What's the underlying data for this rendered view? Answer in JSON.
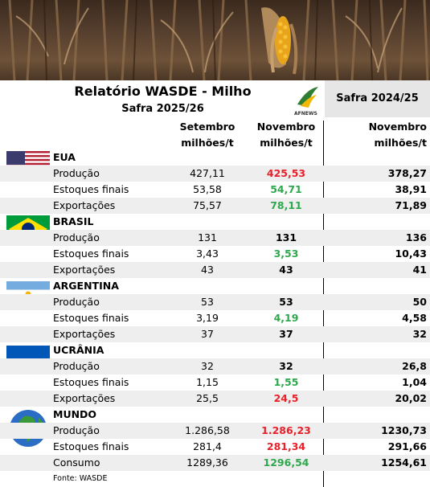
{
  "header": {
    "title": "Relatório WASDE - Milho",
    "subtitle": "Safra 2025/26",
    "safra_prev": "Safra 2024/25",
    "logo_text": "AFNEWS"
  },
  "columns": {
    "col1_line1": "Setembro",
    "col1_line2": "milhões/t",
    "col2_line1": "Novembro",
    "col2_line2": "milhões/t",
    "col3_line1": "Novembro",
    "col3_line2": "milhões/t"
  },
  "colors": {
    "red": "#e8202a",
    "green": "#2ea84c",
    "shade": "#eeeeee"
  },
  "sections": [
    {
      "country": "EUA",
      "flag": "usa-flag-icon",
      "rows": [
        {
          "label": "Produção",
          "set": "427,11",
          "nov": "425,53",
          "nov_color": "red",
          "prev": "378,27"
        },
        {
          "label": "Estoques finais",
          "set": "53,58",
          "nov": "54,71",
          "nov_color": "green",
          "prev": "38,91"
        },
        {
          "label": "Exportações",
          "set": "75,57",
          "nov": "78,11",
          "nov_color": "green",
          "prev": "71,89"
        }
      ]
    },
    {
      "country": "BRASIL",
      "flag": "brazil-flag-icon",
      "rows": [
        {
          "label": "Produção",
          "set": "131",
          "nov": "131",
          "nov_color": "",
          "prev": "136"
        },
        {
          "label": "Estoques finais",
          "set": "3,43",
          "nov": "3,53",
          "nov_color": "green",
          "prev": "10,43"
        },
        {
          "label": "Exportações",
          "set": "43",
          "nov": "43",
          "nov_color": "",
          "prev": "41"
        }
      ]
    },
    {
      "country": "ARGENTINA",
      "flag": "argentina-flag-icon",
      "rows": [
        {
          "label": "Produção",
          "set": "53",
          "nov": "53",
          "nov_color": "",
          "prev": "50"
        },
        {
          "label": "Estoques finais",
          "set": "3,19",
          "nov": "4,19",
          "nov_color": "green",
          "prev": "4,58"
        },
        {
          "label": "Exportações",
          "set": "37",
          "nov": "37",
          "nov_color": "",
          "prev": "32"
        }
      ]
    },
    {
      "country": "UCRÂNIA",
      "flag": "ukraine-flag-icon",
      "rows": [
        {
          "label": "Produção",
          "set": "32",
          "nov": "32",
          "nov_color": "",
          "prev": "26,8"
        },
        {
          "label": "Estoques finais",
          "set": "1,15",
          "nov": "1,55",
          "nov_color": "green",
          "prev": "1,04"
        },
        {
          "label": "Exportações",
          "set": "25,5",
          "nov": "24,5",
          "nov_color": "red",
          "prev": "20,02"
        }
      ]
    },
    {
      "country": "MUNDO",
      "flag": "globe-icon",
      "rows": [
        {
          "label": "Produção",
          "set": "1.286,58",
          "nov": "1.286,23",
          "nov_color": "red",
          "prev": "1230,73"
        },
        {
          "label": "Estoques finais",
          "set": "281,4",
          "nov": "281,34",
          "nov_color": "red",
          "prev": "291,66"
        },
        {
          "label": "Consumo",
          "set": "1289,36",
          "nov": "1296,54",
          "nov_color": "green",
          "prev": "1254,61"
        }
      ]
    }
  ],
  "footer": {
    "source": "Fonte: WASDE"
  }
}
